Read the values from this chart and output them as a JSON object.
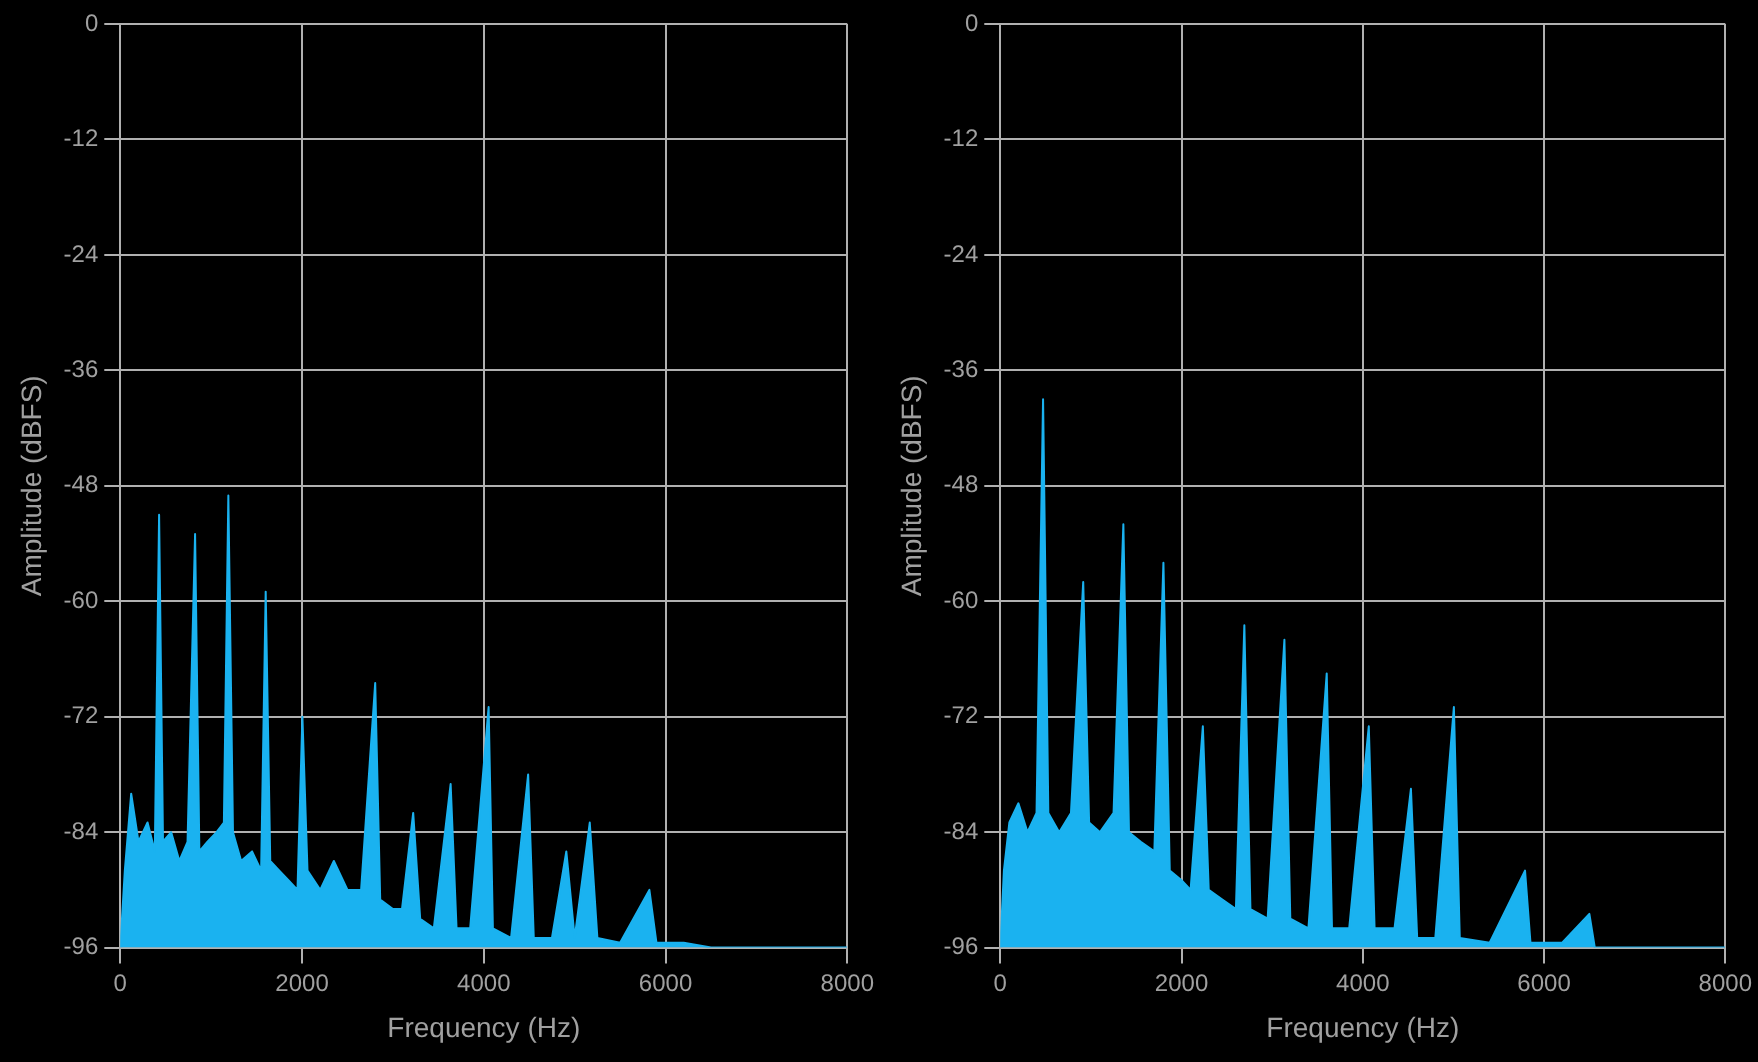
{
  "chart_data": [
    {
      "type": "area",
      "xlabel": "Frequency (Hz)",
      "ylabel": "Amplitude (dBFS)",
      "color": "#1ab2f0",
      "grid": true,
      "xlim": [
        0,
        8000
      ],
      "ylim": [
        -96,
        0
      ],
      "xticks": [
        0,
        2000,
        4000,
        6000,
        8000
      ],
      "yticks": [
        0,
        -12,
        -24,
        -36,
        -48,
        -60,
        -72,
        -84,
        -96
      ],
      "x": [
        0,
        50,
        120,
        200,
        300,
        380,
        427,
        470,
        560,
        650,
        740,
        823,
        870,
        960,
        1060,
        1140,
        1189,
        1240,
        1330,
        1450,
        1550,
        1600,
        1650,
        1750,
        1850,
        1950,
        2004,
        2060,
        2200,
        2350,
        2500,
        2650,
        2805,
        2860,
        3000,
        3100,
        3223,
        3300,
        3450,
        3635,
        3700,
        3850,
        4053,
        4100,
        4300,
        4488,
        4550,
        4750,
        4908,
        5000,
        5166,
        5250,
        5500,
        5822,
        5900,
        6200,
        6500,
        8000
      ],
      "values": [
        -96,
        -88,
        -80,
        -85,
        -83,
        -86,
        -51,
        -85,
        -84,
        -87,
        -85,
        -53,
        -86,
        -85,
        -84,
        -83,
        -49,
        -84,
        -87,
        -86,
        -88,
        -59,
        -87,
        -88,
        -89,
        -90,
        -72,
        -88,
        -90,
        -87,
        -90,
        -90,
        -68.5,
        -91,
        -92,
        -92,
        -82,
        -93,
        -94,
        -79,
        -94,
        -94,
        -71,
        -94,
        -95,
        -78,
        -95,
        -95,
        -86,
        -95,
        -83,
        -95,
        -95.5,
        -90,
        -95.5,
        -95.5,
        -96,
        -96
      ]
    },
    {
      "type": "area",
      "xlabel": "Frequency (Hz)",
      "ylabel": "Amplitude (dBFS)",
      "color": "#1ab2f0",
      "grid": true,
      "xlim": [
        0,
        8000
      ],
      "ylim": [
        -96,
        0
      ],
      "xticks": [
        0,
        2000,
        4000,
        6000,
        8000
      ],
      "yticks": [
        0,
        -12,
        -24,
        -36,
        -48,
        -60,
        -72,
        -84,
        -96
      ],
      "x": [
        0,
        40,
        100,
        200,
        300,
        400,
        472,
        530,
        650,
        780,
        915,
        980,
        1100,
        1250,
        1358,
        1420,
        1550,
        1700,
        1800,
        1870,
        2000,
        2100,
        2235,
        2300,
        2450,
        2600,
        2693,
        2760,
        2950,
        3135,
        3200,
        3400,
        3602,
        3660,
        3850,
        4066,
        4130,
        4350,
        4531,
        4600,
        4800,
        5005,
        5070,
        5400,
        5790,
        5850,
        6200,
        6500,
        6560,
        8000
      ],
      "values": [
        -96,
        -88,
        -83,
        -81,
        -84,
        -82,
        -39,
        -82,
        -84,
        -82,
        -58,
        -83,
        -84,
        -82,
        -52,
        -84,
        -85,
        -86,
        -56,
        -88,
        -89,
        -90,
        -73,
        -90,
        -91,
        -92,
        -62.5,
        -92,
        -93,
        -64,
        -93,
        -94,
        -67.5,
        -94,
        -94,
        -73,
        -94,
        -94,
        -79.5,
        -95,
        -95,
        -71,
        -95,
        -95.5,
        -88,
        -95.5,
        -95.5,
        -92.5,
        -96,
        -96
      ]
    }
  ]
}
